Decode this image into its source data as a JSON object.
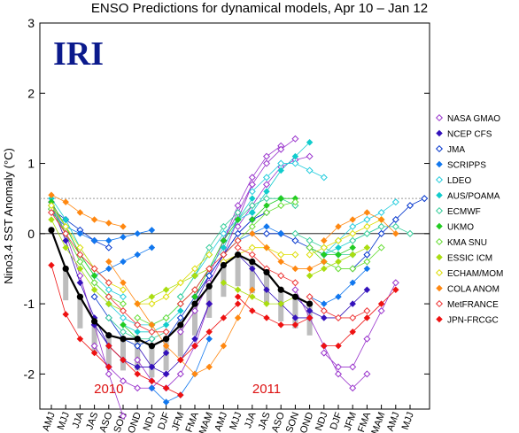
{
  "chart_data": {
    "type": "line",
    "title": "ENSO Predictions for dynamical models, Apr 10 – Jan 12",
    "xlabel": "",
    "ylabel": "Nino3.4 SST Anomaly (°C)",
    "ylim": [
      -2.5,
      3
    ],
    "yticks": [
      -2,
      -1,
      0,
      1,
      2,
      3
    ],
    "grid": false,
    "reference_line": 0,
    "threshold_line": 0.5,
    "legend_position": "right",
    "logo": "IRI",
    "year_labels": [
      {
        "text": "2010",
        "x_index": 4
      },
      {
        "text": "2011",
        "x_index": 15
      }
    ],
    "categories": [
      "AMJ",
      "MJJ",
      "JJA",
      "JAS",
      "ASO",
      "SON",
      "OND",
      "NDJ",
      "DJF",
      "JFM",
      "FMA",
      "MAM",
      "AMJ",
      "MJJ",
      "JJA",
      "JAS",
      "ASO",
      "SON",
      "OND",
      "NDJ",
      "DJF",
      "JFM",
      "FMA",
      "MAM",
      "AMJ",
      "MJJ"
    ],
    "observed": {
      "name": "",
      "color": "#000000",
      "x_index": [
        0,
        1,
        2,
        3,
        4,
        5,
        6,
        7,
        8,
        9,
        10,
        11,
        12,
        13,
        14,
        15,
        16,
        17,
        18
      ],
      "values": [
        0.05,
        -0.5,
        -0.9,
        -1.25,
        -1.45,
        -1.5,
        -1.5,
        -1.6,
        -1.5,
        -1.3,
        -1.0,
        -0.75,
        -0.45,
        -0.3,
        -0.4,
        -0.55,
        -0.8,
        -0.9,
        -1.0
      ]
    },
    "series": [
      {
        "name": "NASA GMAO",
        "color": "#9933cc",
        "marker": "diamond-open",
        "forecasts": [
          {
            "start": 0,
            "values": [
              0.45,
              0.0,
              -0.6,
              -1.3,
              -2.0,
              -2.6
            ]
          },
          {
            "start": 3,
            "values": [
              -1.6,
              -1.9,
              -2.1,
              -2.2,
              -2.2,
              -2.0
            ]
          },
          {
            "start": 6,
            "values": [
              -1.8,
              -2.1,
              -2.2,
              -2.0,
              -1.6,
              -1.0
            ]
          },
          {
            "start": 9,
            "values": [
              -1.4,
              -1.1,
              -0.7,
              -0.3,
              0.2,
              0.7
            ]
          },
          {
            "start": 11,
            "values": [
              -0.6,
              -0.1,
              0.4,
              0.8,
              1.1,
              1.25
            ]
          },
          {
            "start": 12,
            "values": [
              -0.1,
              0.3,
              0.7,
              1.0,
              1.2,
              1.35
            ]
          },
          {
            "start": 13,
            "values": [
              0.1,
              0.4,
              0.7,
              0.95,
              1.05,
              1.1
            ]
          },
          {
            "start": 17,
            "values": [
              -0.8,
              -1.2,
              -1.6,
              -2.0,
              -2.2,
              -2.0
            ]
          },
          {
            "start": 19,
            "values": [
              -1.7,
              -1.9,
              -1.9,
              -1.5,
              -1.1,
              -0.7
            ]
          }
        ]
      },
      {
        "name": "NCEP CFS",
        "color": "#3311bb",
        "marker": "diamond",
        "forecasts": [
          {
            "start": 0,
            "values": [
              0.4,
              -0.1,
              -0.7,
              -1.2,
              -1.6,
              -1.8
            ]
          },
          {
            "start": 3,
            "values": [
              -1.3,
              -1.6,
              -1.8,
              -1.9,
              -1.9,
              -1.7
            ]
          },
          {
            "start": 6,
            "values": [
              -1.6,
              -1.9,
              -2.0,
              -1.8,
              -1.5,
              -1.0
            ]
          },
          {
            "start": 10,
            "values": [
              -1.0,
              -0.6,
              -0.3,
              0.0,
              0.2,
              0.3
            ]
          },
          {
            "start": 13,
            "values": [
              -0.3,
              -0.5,
              -0.8,
              -1.0,
              -1.2,
              -1.2
            ]
          },
          {
            "start": 17,
            "values": [
              -0.9,
              -1.1,
              -1.2,
              -1.2,
              -1.0,
              -0.8
            ]
          }
        ]
      },
      {
        "name": "JMA",
        "color": "#0033cc",
        "marker": "diamond-open",
        "forecasts": [
          {
            "start": 0,
            "values": [
              0.35,
              0.2,
              0.05,
              -0.1,
              -0.2
            ]
          },
          {
            "start": 3,
            "values": [
              -0.9,
              -1.2,
              -1.5,
              -1.6,
              -1.5
            ]
          },
          {
            "start": 7,
            "values": [
              -1.6,
              -1.5,
              -1.2,
              -0.9,
              -0.6
            ]
          },
          {
            "start": 11,
            "values": [
              -0.6,
              -0.3,
              0.0,
              0.2,
              0.3
            ]
          },
          {
            "start": 15,
            "values": [
              0.0,
              0.0,
              -0.1,
              -0.2,
              -0.3
            ]
          },
          {
            "start": 21,
            "values": [
              -0.5,
              -0.3,
              0.0,
              0.2,
              0.4,
              0.5
            ]
          }
        ]
      },
      {
        "name": "SCRIPPS",
        "color": "#1177ee",
        "marker": "diamond",
        "forecasts": [
          {
            "start": 0,
            "values": [
              0.3,
              0.1,
              0.0,
              -0.1,
              -0.1,
              -0.05,
              0.0,
              0.05
            ]
          },
          {
            "start": 3,
            "values": [
              -0.6,
              -0.5,
              -0.4,
              -0.3,
              -0.2
            ]
          },
          {
            "start": 7,
            "values": [
              -2.2,
              -2.4,
              -2.3,
              -2.0,
              -1.5
            ]
          },
          {
            "start": 12,
            "values": [
              -0.3,
              -0.1,
              0.0,
              0.1,
              0.0
            ]
          },
          {
            "start": 18,
            "values": [
              -0.9,
              -1.0,
              -0.9,
              -0.7,
              -0.5
            ]
          }
        ]
      },
      {
        "name": "LDEO",
        "color": "#22ccdd",
        "marker": "diamond-open",
        "forecasts": [
          {
            "start": 0,
            "values": [
              0.4,
              0.1,
              -0.3,
              -0.6,
              -0.8,
              -0.9
            ]
          },
          {
            "start": 4,
            "values": [
              -1.0,
              -1.2,
              -1.3,
              -1.3,
              -1.2,
              -1.0
            ]
          },
          {
            "start": 9,
            "values": [
              -0.9,
              -0.6,
              -0.3,
              0.0,
              0.2,
              0.3
            ]
          },
          {
            "start": 14,
            "values": [
              0.6,
              0.8,
              1.0,
              1.0,
              0.9,
              0.8
            ]
          },
          {
            "start": 19,
            "values": [
              -0.3,
              -0.1,
              0.1,
              0.2,
              0.3,
              0.45
            ]
          }
        ]
      },
      {
        "name": "AUS/POAMA",
        "color": "#11cccc",
        "marker": "diamond",
        "forecasts": [
          {
            "start": 0,
            "values": [
              0.5,
              0.2,
              -0.2,
              -0.5,
              -0.7
            ]
          },
          {
            "start": 5,
            "values": [
              -1.3,
              -1.4,
              -1.4,
              -1.3,
              -1.1
            ]
          },
          {
            "start": 10,
            "values": [
              -0.8,
              -0.5,
              -0.2,
              0.2,
              0.5
            ]
          },
          {
            "start": 14,
            "values": [
              0.3,
              0.6,
              0.9,
              1.1,
              1.3
            ]
          },
          {
            "start": 19,
            "values": [
              -0.3,
              -0.2,
              -0.1,
              0.0,
              0.1
            ]
          }
        ]
      },
      {
        "name": "ECMWF",
        "color": "#33cc99",
        "marker": "diamond-open",
        "forecasts": [
          {
            "start": 0,
            "values": [
              0.4,
              0.0,
              -0.4,
              -0.7,
              -0.9
            ]
          },
          {
            "start": 4,
            "values": [
              -1.2,
              -1.4,
              -1.5,
              -1.5,
              -1.4
            ]
          },
          {
            "start": 9,
            "values": [
              -0.9,
              -0.6,
              -0.2,
              0.1,
              0.3
            ]
          },
          {
            "start": 13,
            "values": [
              0.2,
              0.4,
              0.5,
              0.5,
              0.4
            ]
          },
          {
            "start": 17,
            "values": [
              0.0,
              -0.1,
              -0.2,
              -0.3,
              -0.3
            ]
          },
          {
            "start": 21,
            "values": [
              -0.1,
              0.0,
              0.1,
              0.1,
              0.0
            ]
          }
        ]
      },
      {
        "name": "UKMO",
        "color": "#22cc22",
        "marker": "diamond",
        "forecasts": [
          {
            "start": 0,
            "values": [
              0.45,
              0.1,
              -0.3,
              -0.6
            ]
          },
          {
            "start": 5,
            "values": [
              -1.3,
              -1.5,
              -1.6,
              -1.5
            ]
          },
          {
            "start": 10,
            "values": [
              -0.9,
              -0.5,
              -0.1,
              0.2
            ]
          },
          {
            "start": 14,
            "values": [
              0.2,
              0.4,
              0.5,
              0.5
            ]
          },
          {
            "start": 18,
            "values": [
              -0.2,
              -0.3,
              -0.3,
              -0.2
            ]
          }
        ]
      },
      {
        "name": "KMA SNU",
        "color": "#66dd33",
        "marker": "diamond-open",
        "forecasts": [
          {
            "start": 0,
            "values": [
              0.35,
              0.0,
              -0.4,
              -0.7,
              -0.9,
              -1.0
            ]
          },
          {
            "start": 6,
            "values": [
              -1.2,
              -1.3,
              -1.2,
              -1.0,
              -0.8,
              -0.5
            ]
          },
          {
            "start": 12,
            "values": [
              -0.3,
              -0.1,
              0.1,
              0.3,
              0.4,
              0.45
            ]
          },
          {
            "start": 18,
            "values": [
              -0.2,
              -0.4,
              -0.5,
              -0.5,
              -0.4,
              -0.2
            ]
          }
        ]
      },
      {
        "name": "ESSIC ICM",
        "color": "#aadd11",
        "marker": "diamond",
        "forecasts": [
          {
            "start": 0,
            "values": [
              0.2,
              -0.2,
              -0.5,
              -0.8,
              -1.0,
              -1.1
            ]
          },
          {
            "start": 6,
            "values": [
              -1.0,
              -0.9,
              -0.8,
              -0.7,
              -0.6,
              -0.5
            ]
          },
          {
            "start": 12,
            "values": [
              -0.7,
              -0.8,
              -0.9,
              -1.0,
              -1.0,
              -0.9
            ]
          },
          {
            "start": 18,
            "values": [
              -0.6,
              -0.5,
              -0.4,
              -0.3,
              -0.2
            ]
          }
        ]
      },
      {
        "name": "ECHAM/MOM",
        "color": "#dddd00",
        "marker": "diamond-open",
        "forecasts": [
          {
            "start": 0,
            "values": [
              0.4,
              0.1,
              -0.2,
              -0.5,
              -0.7,
              -0.8
            ]
          },
          {
            "start": 6,
            "values": [
              -1.0,
              -1.0,
              -0.9,
              -0.7,
              -0.5,
              -0.3
            ]
          },
          {
            "start": 12,
            "values": [
              -0.4,
              -0.3,
              -0.2,
              -0.2,
              -0.3,
              -0.3
            ]
          },
          {
            "start": 18,
            "values": [
              -0.3,
              -0.2,
              -0.1,
              0.0,
              0.1,
              0.2
            ]
          }
        ]
      },
      {
        "name": "COLA ANOM",
        "color": "#ff8811",
        "marker": "diamond",
        "forecasts": [
          {
            "start": 0,
            "values": [
              0.55,
              0.45,
              0.3,
              0.2,
              0.15,
              0.1
            ]
          },
          {
            "start": 4,
            "values": [
              -0.4,
              -0.7,
              -1.0,
              -1.3,
              -1.6,
              -1.8
            ]
          },
          {
            "start": 9,
            "values": [
              -1.8,
              -2.0,
              -1.9,
              -1.6,
              -1.2,
              -0.8
            ]
          },
          {
            "start": 14,
            "values": [
              0.0,
              -0.2,
              -0.4,
              -0.5,
              -0.5,
              -0.4
            ]
          },
          {
            "start": 19,
            "values": [
              -0.1,
              0.1,
              0.2,
              0.3,
              0.2,
              0.0
            ]
          }
        ]
      },
      {
        "name": "MetFRANCE",
        "color": "#ee3333",
        "marker": "diamond-open",
        "forecasts": [
          {
            "start": 0,
            "values": [
              0.3,
              0.0,
              -0.3,
              -0.5,
              -0.7
            ]
          },
          {
            "start": 4,
            "values": [
              -0.9,
              -1.1,
              -1.3,
              -1.4,
              -1.4
            ]
          },
          {
            "start": 9,
            "values": [
              -1.0,
              -0.8,
              -0.5,
              -0.3,
              -0.1
            ]
          },
          {
            "start": 13,
            "values": [
              -0.2,
              -0.3,
              -0.5,
              -0.6,
              -0.7
            ]
          },
          {
            "start": 18,
            "values": [
              -0.9,
              -1.1,
              -1.2,
              -1.2,
              -1.1
            ]
          }
        ]
      },
      {
        "name": "JPN-FRCGC",
        "color": "#ee1111",
        "marker": "diamond",
        "forecasts": [
          {
            "start": 0,
            "values": [
              -0.45,
              -1.15,
              -1.5,
              -1.7,
              -1.9
            ]
          },
          {
            "start": 4,
            "values": [
              -1.6,
              -1.8,
              -2.0,
              -2.1,
              -2.2,
              -2.3
            ]
          },
          {
            "start": 9,
            "values": [
              -1.8,
              -1.6,
              -1.4,
              -1.2,
              -1.0
            ]
          },
          {
            "start": 13,
            "values": [
              -0.9,
              -1.1,
              -1.2,
              -1.3,
              -1.3,
              -1.2
            ]
          },
          {
            "start": 19,
            "values": [
              -1.6,
              -1.6,
              -1.4,
              -1.2,
              -1.0,
              -0.8
            ]
          }
        ]
      }
    ]
  }
}
